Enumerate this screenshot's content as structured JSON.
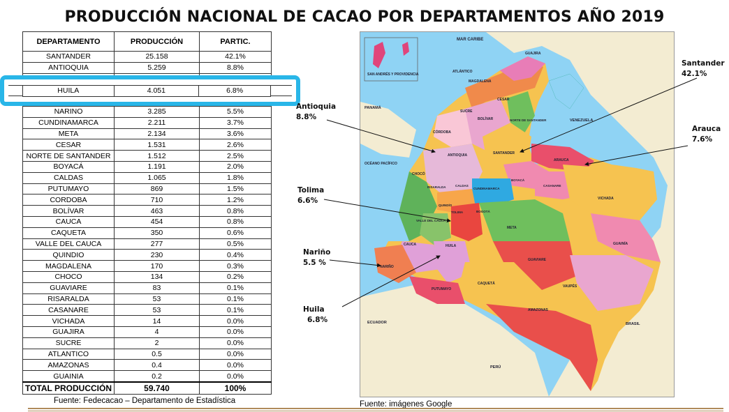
{
  "title": "PRODUCCIÓN NACIONAL DE CACAO POR DEPARTAMENTOS AÑO 2019",
  "table": {
    "headers": [
      "DEPARTAMENTO",
      "PRODUCCIÓN",
      "PARTIC."
    ],
    "rows": [
      [
        "SANTANDER",
        "25.158",
        "42.1%"
      ],
      [
        "ANTIOQUIA",
        "5.259",
        "8.8%"
      ],
      [
        "",
        "",
        ""
      ],
      [
        "HUILA",
        "4.051",
        "6.8%"
      ],
      [
        "",
        "",
        ""
      ],
      [
        "NARINO",
        "3.285",
        "5.5%"
      ],
      [
        "CUNDINAMARCA",
        "2.211",
        "3.7%"
      ],
      [
        "META",
        "2.134",
        "3.6%"
      ],
      [
        "CESAR",
        "1.531",
        "2.6%"
      ],
      [
        "NORTE DE SANTANDER",
        "1.512",
        "2.5%"
      ],
      [
        "BOYACÁ",
        "1.191",
        "2.0%"
      ],
      [
        "CALDAS",
        "1.065",
        "1.8%"
      ],
      [
        "PUTUMAYO",
        "869",
        "1.5%"
      ],
      [
        "CORDOBA",
        "710",
        "1.2%"
      ],
      [
        "BOLÍVAR",
        "463",
        "0.8%"
      ],
      [
        "CAUCA",
        "454",
        "0.8%"
      ],
      [
        "CAQUETA",
        "350",
        "0.6%"
      ],
      [
        "VALLE DEL CAUCA",
        "277",
        "0.5%"
      ],
      [
        "QUINDIO",
        "230",
        "0.4%"
      ],
      [
        "MAGDALENA",
        "170",
        "0.3%"
      ],
      [
        "CHOCO",
        "134",
        "0.2%"
      ],
      [
        "GUAVIARE",
        "83",
        "0.1%"
      ],
      [
        "RISARALDA",
        "53",
        "0.1%"
      ],
      [
        "CASANARE",
        "53",
        "0.1%"
      ],
      [
        "VICHADA",
        "14",
        "0.0%"
      ],
      [
        "GUAJIRA",
        "4",
        "0.0%"
      ],
      [
        "SUCRE",
        "2",
        "0.0%"
      ],
      [
        "ATLANTICO",
        "0.5",
        "0.0%"
      ],
      [
        "AMAZONAS",
        "0.4",
        "0.0%"
      ],
      [
        "GUAINIA",
        "0.2",
        "0.0%"
      ]
    ],
    "total": [
      "TOTAL PRODUCCIÓN",
      "59.740",
      "100%"
    ]
  },
  "source_left": "Fuente: Fedecacao – Departamento de Estadística",
  "source_right": "Fuente: imágenes Google",
  "callouts": {
    "santander": "Santander",
    "santander_pct": "42.1%",
    "antioquia": "Antioquia",
    "antioquia_pct": "8.8%",
    "arauca": "Arauca",
    "arauca_pct": "7.6%",
    "tolima": "Tolima",
    "tolima_pct": "6.6%",
    "narino": "Nariño",
    "narino_pct": "5.5 %",
    "huila": "Huila",
    "huila_pct": "6.8%"
  },
  "map_labels": {
    "mar_caribe": "MAR CARIBE",
    "san_andres": "SAN ANDRÉS Y PROVIDENCIA",
    "guajira": "GUAJIRA",
    "atlantico": "ATLÁNTICO",
    "magdalena": "MAGDALENA",
    "cesar": "CESAR",
    "sucre": "SUCRE",
    "bolivar": "BOLÍVAR",
    "norte_santander": "NORTE DE SANTANDER",
    "cordoba": "CÓRDOBA",
    "antioquia": "ANTIOQUIA",
    "santander": "SANTANDER",
    "arauca": "ARAUCA",
    "venezuela": "VENEZUELA",
    "panama": "PANAMÁ",
    "oceano_pacifico": "OCÉANO PACÍFICO",
    "choco": "CHOCÓ",
    "risaralda": "RISARALDA",
    "caldas": "CALDAS",
    "cundinamarca": "CUNDINAMARCA",
    "boyaca": "BOYACÁ",
    "casanare": "CASANARE",
    "vichada": "VICHADA",
    "quindio": "QUINDÍO",
    "tolima": "TOLIMA",
    "bogota": "BOGOTÁ",
    "valle": "VALLE DEL CAUCA",
    "meta": "META",
    "cauca": "CAUCA",
    "huila": "HUILA",
    "guainia": "GUAINÍA",
    "narino": "NARIÑO",
    "guaviare": "GUAVIARE",
    "putumayo": "PUTUMAYO",
    "caqueta": "CAQUETÁ",
    "vaupes": "VAUPÉS",
    "ecuador": "ECUADOR",
    "amazonas": "AMAZONAS",
    "brasil": "BRASIL",
    "peru": "PERÚ"
  },
  "colors": {
    "highlight": "#29b6e8",
    "sea": "#8fd3f4",
    "neighbor": "#f3ecd2",
    "rule": "#b08a5a"
  }
}
